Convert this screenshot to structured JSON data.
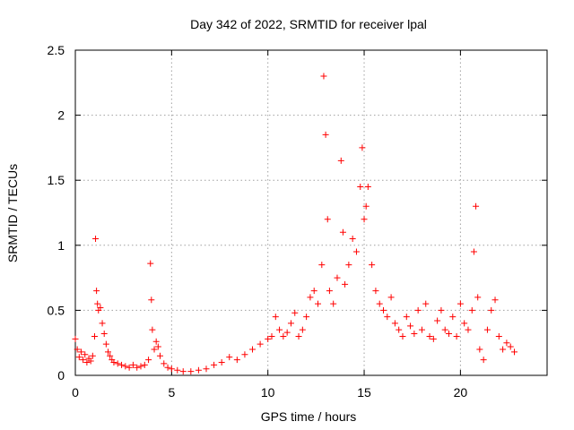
{
  "chart_data": {
    "type": "scatter",
    "title": "Day 342 of 2022, SRMTID for receiver lpal",
    "xlabel": "GPS time / hours",
    "ylabel": "SRMTID / TECUs",
    "xlim": [
      0,
      24.5
    ],
    "ylim": [
      0,
      2.5
    ],
    "x_ticks": [
      0,
      5,
      10,
      15,
      20
    ],
    "x_tick_labels": [
      "0",
      "5",
      "10",
      "15",
      "20"
    ],
    "y_ticks": [
      0,
      0.5,
      1,
      1.5,
      2,
      2.5
    ],
    "y_tick_labels": [
      "0",
      "0.5",
      "1",
      "1.5",
      "2",
      "2.5"
    ],
    "grid": true,
    "marker": "+",
    "series": [
      {
        "name": "SRMTID",
        "color": "#ff0000",
        "x": [
          0.0,
          0.1,
          0.2,
          0.3,
          0.4,
          0.5,
          0.6,
          0.7,
          0.8,
          0.9,
          1.0,
          1.05,
          1.1,
          1.15,
          1.2,
          1.3,
          1.4,
          1.5,
          1.6,
          1.7,
          1.8,
          1.9,
          2.0,
          2.2,
          2.4,
          2.6,
          2.8,
          3.0,
          3.2,
          3.4,
          3.6,
          3.8,
          3.9,
          3.95,
          4.0,
          4.1,
          4.2,
          4.3,
          4.4,
          4.6,
          4.8,
          5.0,
          5.3,
          5.6,
          6.0,
          6.4,
          6.8,
          7.2,
          7.6,
          8.0,
          8.4,
          8.8,
          9.2,
          9.6,
          10.0,
          10.2,
          10.4,
          10.6,
          10.8,
          11.0,
          11.2,
          11.4,
          11.6,
          11.8,
          12.0,
          12.2,
          12.4,
          12.6,
          12.8,
          12.9,
          13.0,
          13.1,
          13.2,
          13.4,
          13.6,
          13.8,
          13.9,
          14.0,
          14.2,
          14.4,
          14.6,
          14.8,
          14.9,
          15.0,
          15.1,
          15.2,
          15.4,
          15.6,
          15.8,
          16.0,
          16.2,
          16.4,
          16.6,
          16.8,
          17.0,
          17.2,
          17.4,
          17.6,
          17.8,
          18.0,
          18.2,
          18.4,
          18.6,
          18.8,
          19.0,
          19.2,
          19.4,
          19.6,
          19.8,
          20.0,
          20.2,
          20.4,
          20.6,
          20.7,
          20.8,
          20.9,
          21.0,
          21.2,
          21.4,
          21.6,
          21.8,
          22.0,
          22.2,
          22.4,
          22.6,
          22.8
        ],
        "values": [
          0.28,
          0.2,
          0.14,
          0.18,
          0.12,
          0.16,
          0.1,
          0.13,
          0.11,
          0.15,
          0.3,
          1.05,
          0.65,
          0.55,
          0.5,
          0.52,
          0.4,
          0.32,
          0.24,
          0.18,
          0.15,
          0.12,
          0.1,
          0.09,
          0.08,
          0.07,
          0.06,
          0.08,
          0.06,
          0.07,
          0.08,
          0.12,
          0.86,
          0.58,
          0.35,
          0.2,
          0.26,
          0.22,
          0.15,
          0.09,
          0.06,
          0.05,
          0.04,
          0.03,
          0.03,
          0.04,
          0.05,
          0.08,
          0.1,
          0.14,
          0.12,
          0.16,
          0.2,
          0.24,
          0.28,
          0.3,
          0.45,
          0.35,
          0.3,
          0.33,
          0.4,
          0.48,
          0.3,
          0.35,
          0.45,
          0.6,
          0.65,
          0.55,
          0.85,
          2.3,
          1.85,
          1.2,
          0.65,
          0.55,
          0.75,
          1.65,
          1.1,
          0.7,
          0.85,
          1.05,
          0.95,
          1.45,
          1.75,
          1.2,
          1.3,
          1.45,
          0.85,
          0.65,
          0.55,
          0.5,
          0.45,
          0.6,
          0.4,
          0.35,
          0.3,
          0.45,
          0.38,
          0.32,
          0.5,
          0.35,
          0.55,
          0.3,
          0.28,
          0.42,
          0.5,
          0.35,
          0.32,
          0.45,
          0.3,
          0.55,
          0.4,
          0.35,
          0.5,
          0.95,
          1.3,
          0.6,
          0.2,
          0.12,
          0.35,
          0.5,
          0.58,
          0.3,
          0.2,
          0.25,
          0.22,
          0.18
        ]
      }
    ]
  }
}
